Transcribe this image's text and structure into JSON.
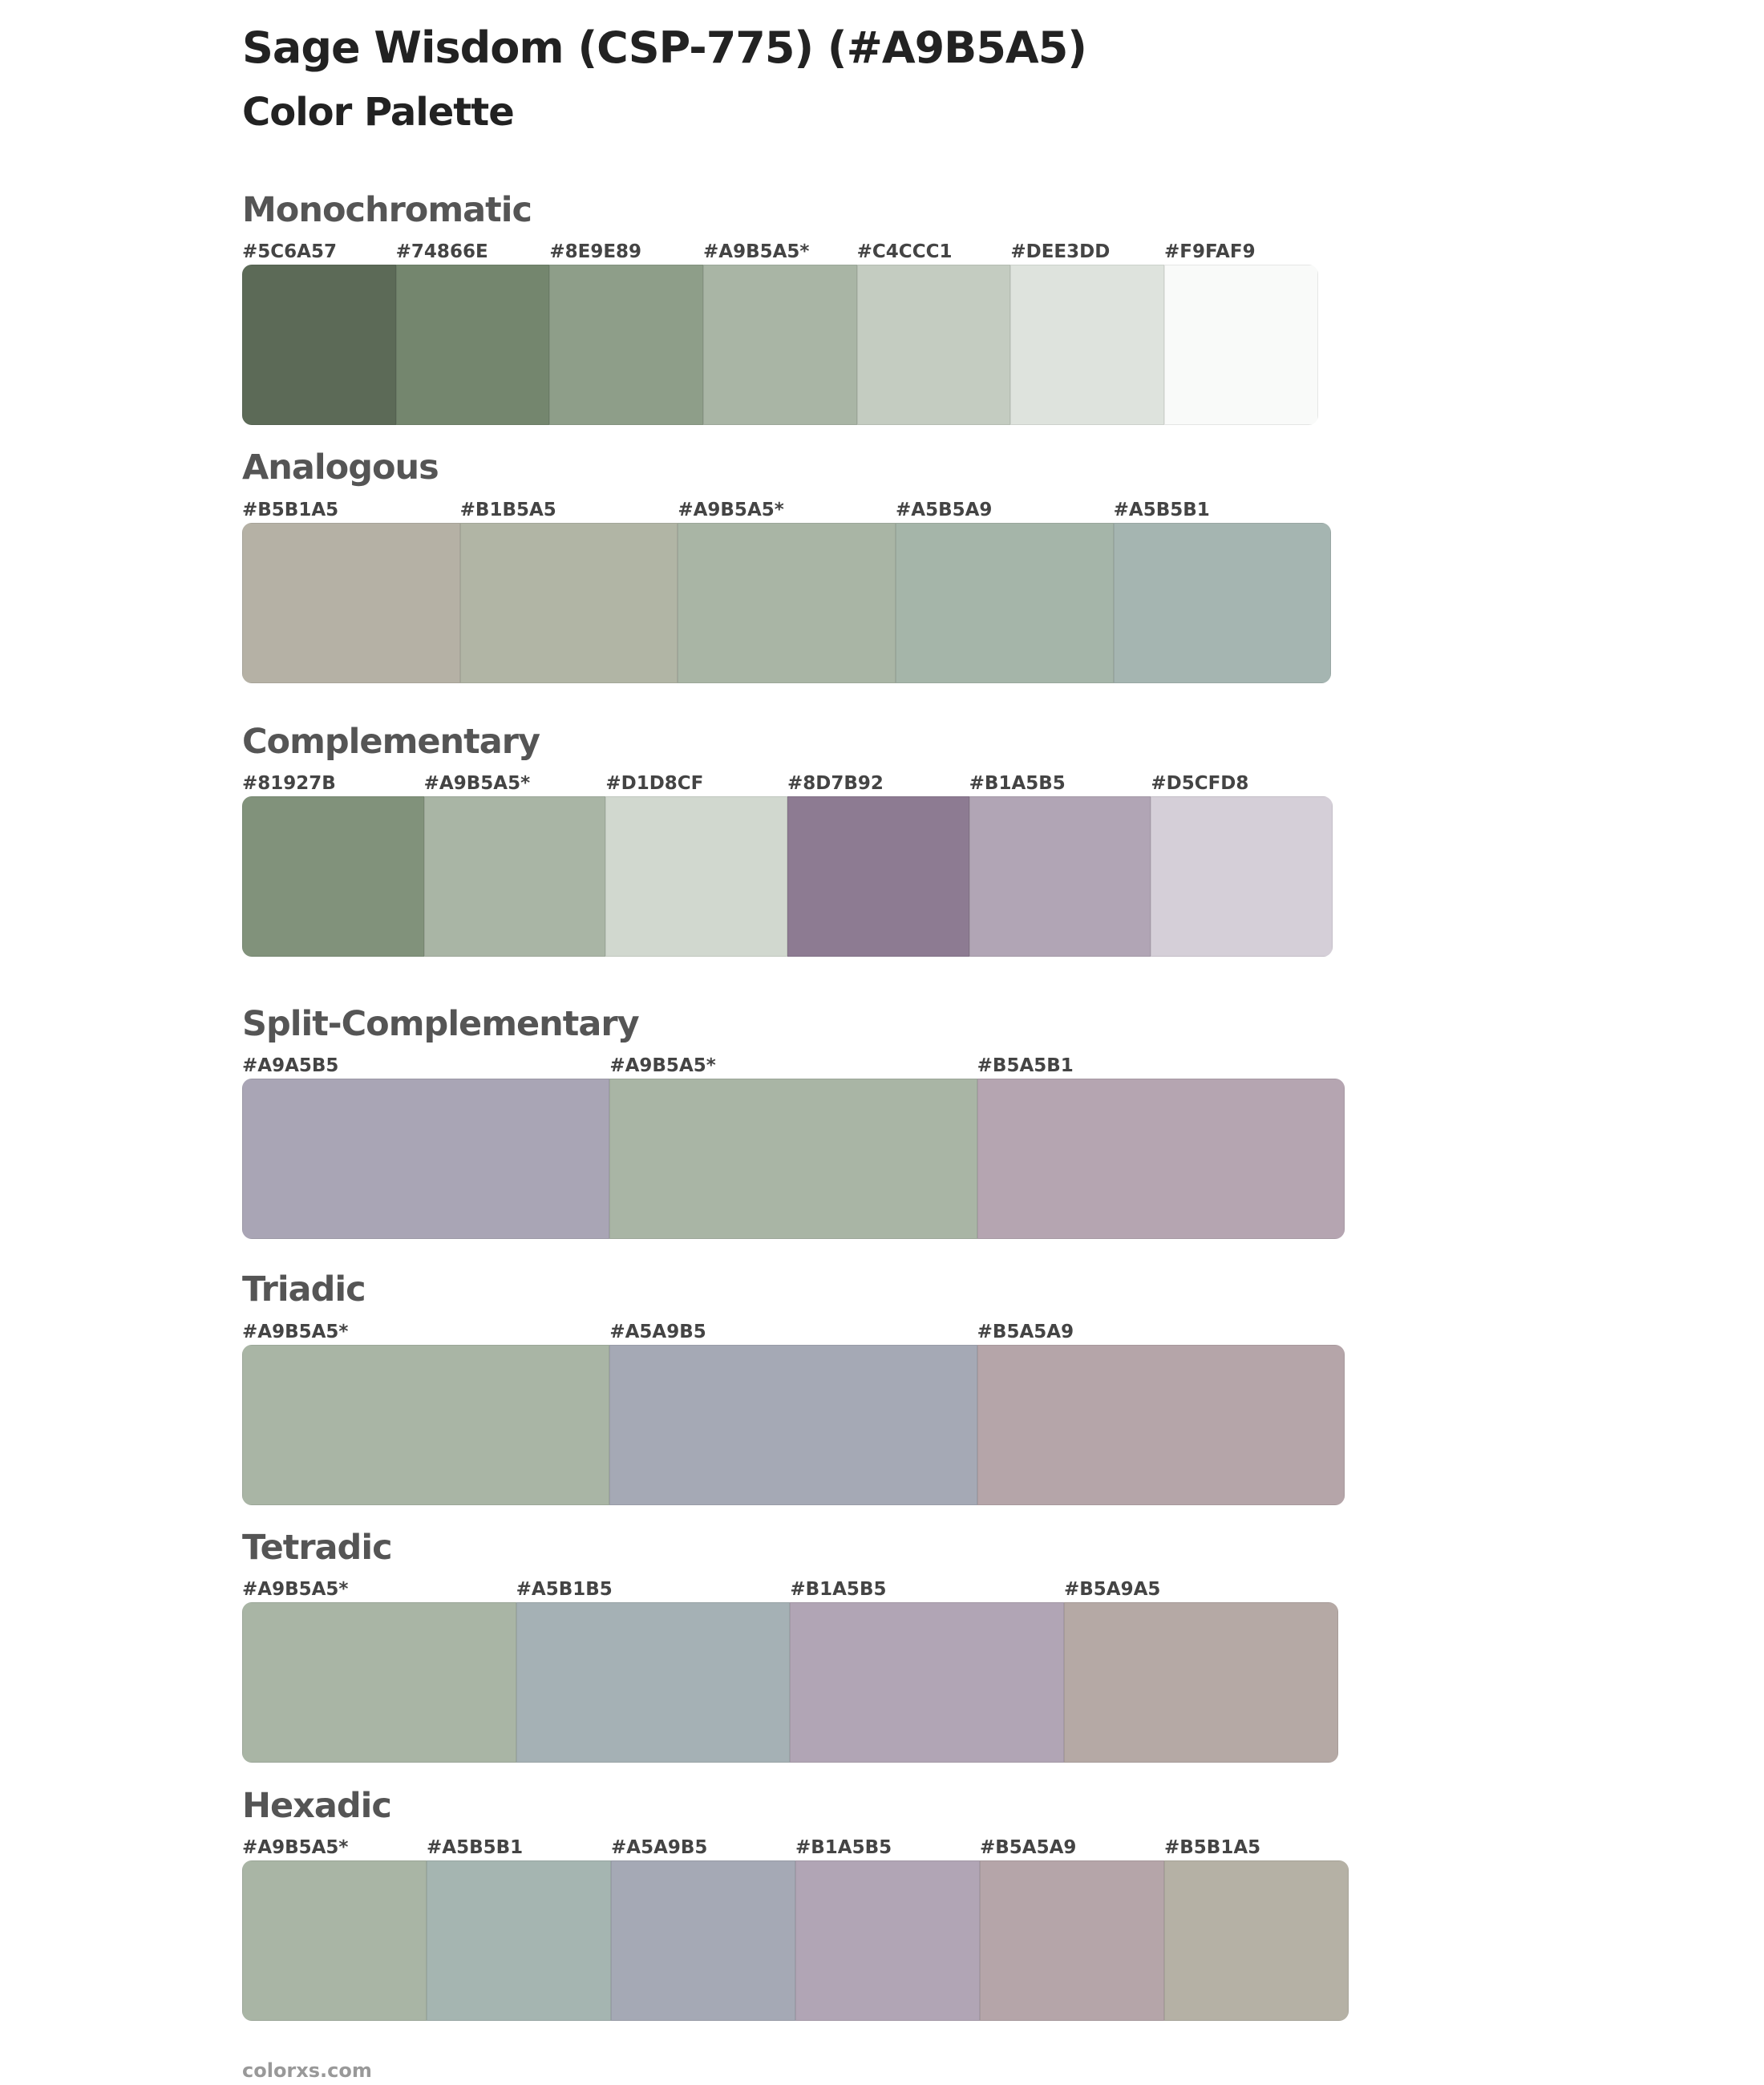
{
  "header": {
    "title": "Sage Wisdom (CSP-775) (#A9B5A5)",
    "subtitle": "Color Palette"
  },
  "sections": [
    {
      "name": "Monochromatic",
      "swatches": [
        {
          "label": "#5C6A57",
          "color": "#5C6A57"
        },
        {
          "label": "#74866E",
          "color": "#74866E"
        },
        {
          "label": "#8E9E89",
          "color": "#8E9E89"
        },
        {
          "label": "#A9B5A5*",
          "color": "#A9B5A5"
        },
        {
          "label": "#C4CCC1",
          "color": "#C4CCC1"
        },
        {
          "label": "#DEE3DD",
          "color": "#DEE3DD"
        },
        {
          "label": "#F9FAF9",
          "color": "#F9FAF9"
        }
      ]
    },
    {
      "name": "Analogous",
      "swatches": [
        {
          "label": "#B5B1A5",
          "color": "#B5B1A5"
        },
        {
          "label": "#B1B5A5",
          "color": "#B1B5A5"
        },
        {
          "label": "#A9B5A5*",
          "color": "#A9B5A5"
        },
        {
          "label": "#A5B5A9",
          "color": "#A5B5A9"
        },
        {
          "label": "#A5B5B1",
          "color": "#A5B5B1"
        }
      ]
    },
    {
      "name": "Complementary",
      "swatches": [
        {
          "label": "#81927B",
          "color": "#81927B"
        },
        {
          "label": "#A9B5A5*",
          "color": "#A9B5A5"
        },
        {
          "label": "#D1D8CF",
          "color": "#D1D8CF"
        },
        {
          "label": "#8D7B92",
          "color": "#8D7B92"
        },
        {
          "label": "#B1A5B5",
          "color": "#B1A5B5"
        },
        {
          "label": "#D5CFD8",
          "color": "#D5CFD8"
        }
      ]
    },
    {
      "name": "Split-Complementary",
      "swatches": [
        {
          "label": "#A9A5B5",
          "color": "#A9A5B5"
        },
        {
          "label": "#A9B5A5*",
          "color": "#A9B5A5"
        },
        {
          "label": "#B5A5B1",
          "color": "#B5A5B1"
        }
      ]
    },
    {
      "name": "Triadic",
      "swatches": [
        {
          "label": "#A9B5A5*",
          "color": "#A9B5A5"
        },
        {
          "label": "#A5A9B5",
          "color": "#A5A9B5"
        },
        {
          "label": "#B5A5A9",
          "color": "#B5A5A9"
        }
      ]
    },
    {
      "name": "Tetradic",
      "swatches": [
        {
          "label": "#A9B5A5*",
          "color": "#A9B5A5"
        },
        {
          "label": "#A5B1B5",
          "color": "#A5B1B5"
        },
        {
          "label": "#B1A5B5",
          "color": "#B1A5B5"
        },
        {
          "label": "#B5A9A5",
          "color": "#B5A9A5"
        }
      ]
    },
    {
      "name": "Hexadic",
      "swatches": [
        {
          "label": "#A9B5A5*",
          "color": "#A9B5A5"
        },
        {
          "label": "#A5B5B1",
          "color": "#A5B5B1"
        },
        {
          "label": "#A5A9B5",
          "color": "#A5A9B5"
        },
        {
          "label": "#B1A5B5",
          "color": "#B1A5B5"
        },
        {
          "label": "#B5A5A9",
          "color": "#B5A5A9"
        },
        {
          "label": "#B5B1A5",
          "color": "#B5B1A5"
        }
      ]
    }
  ],
  "footer": "colorxs.com"
}
